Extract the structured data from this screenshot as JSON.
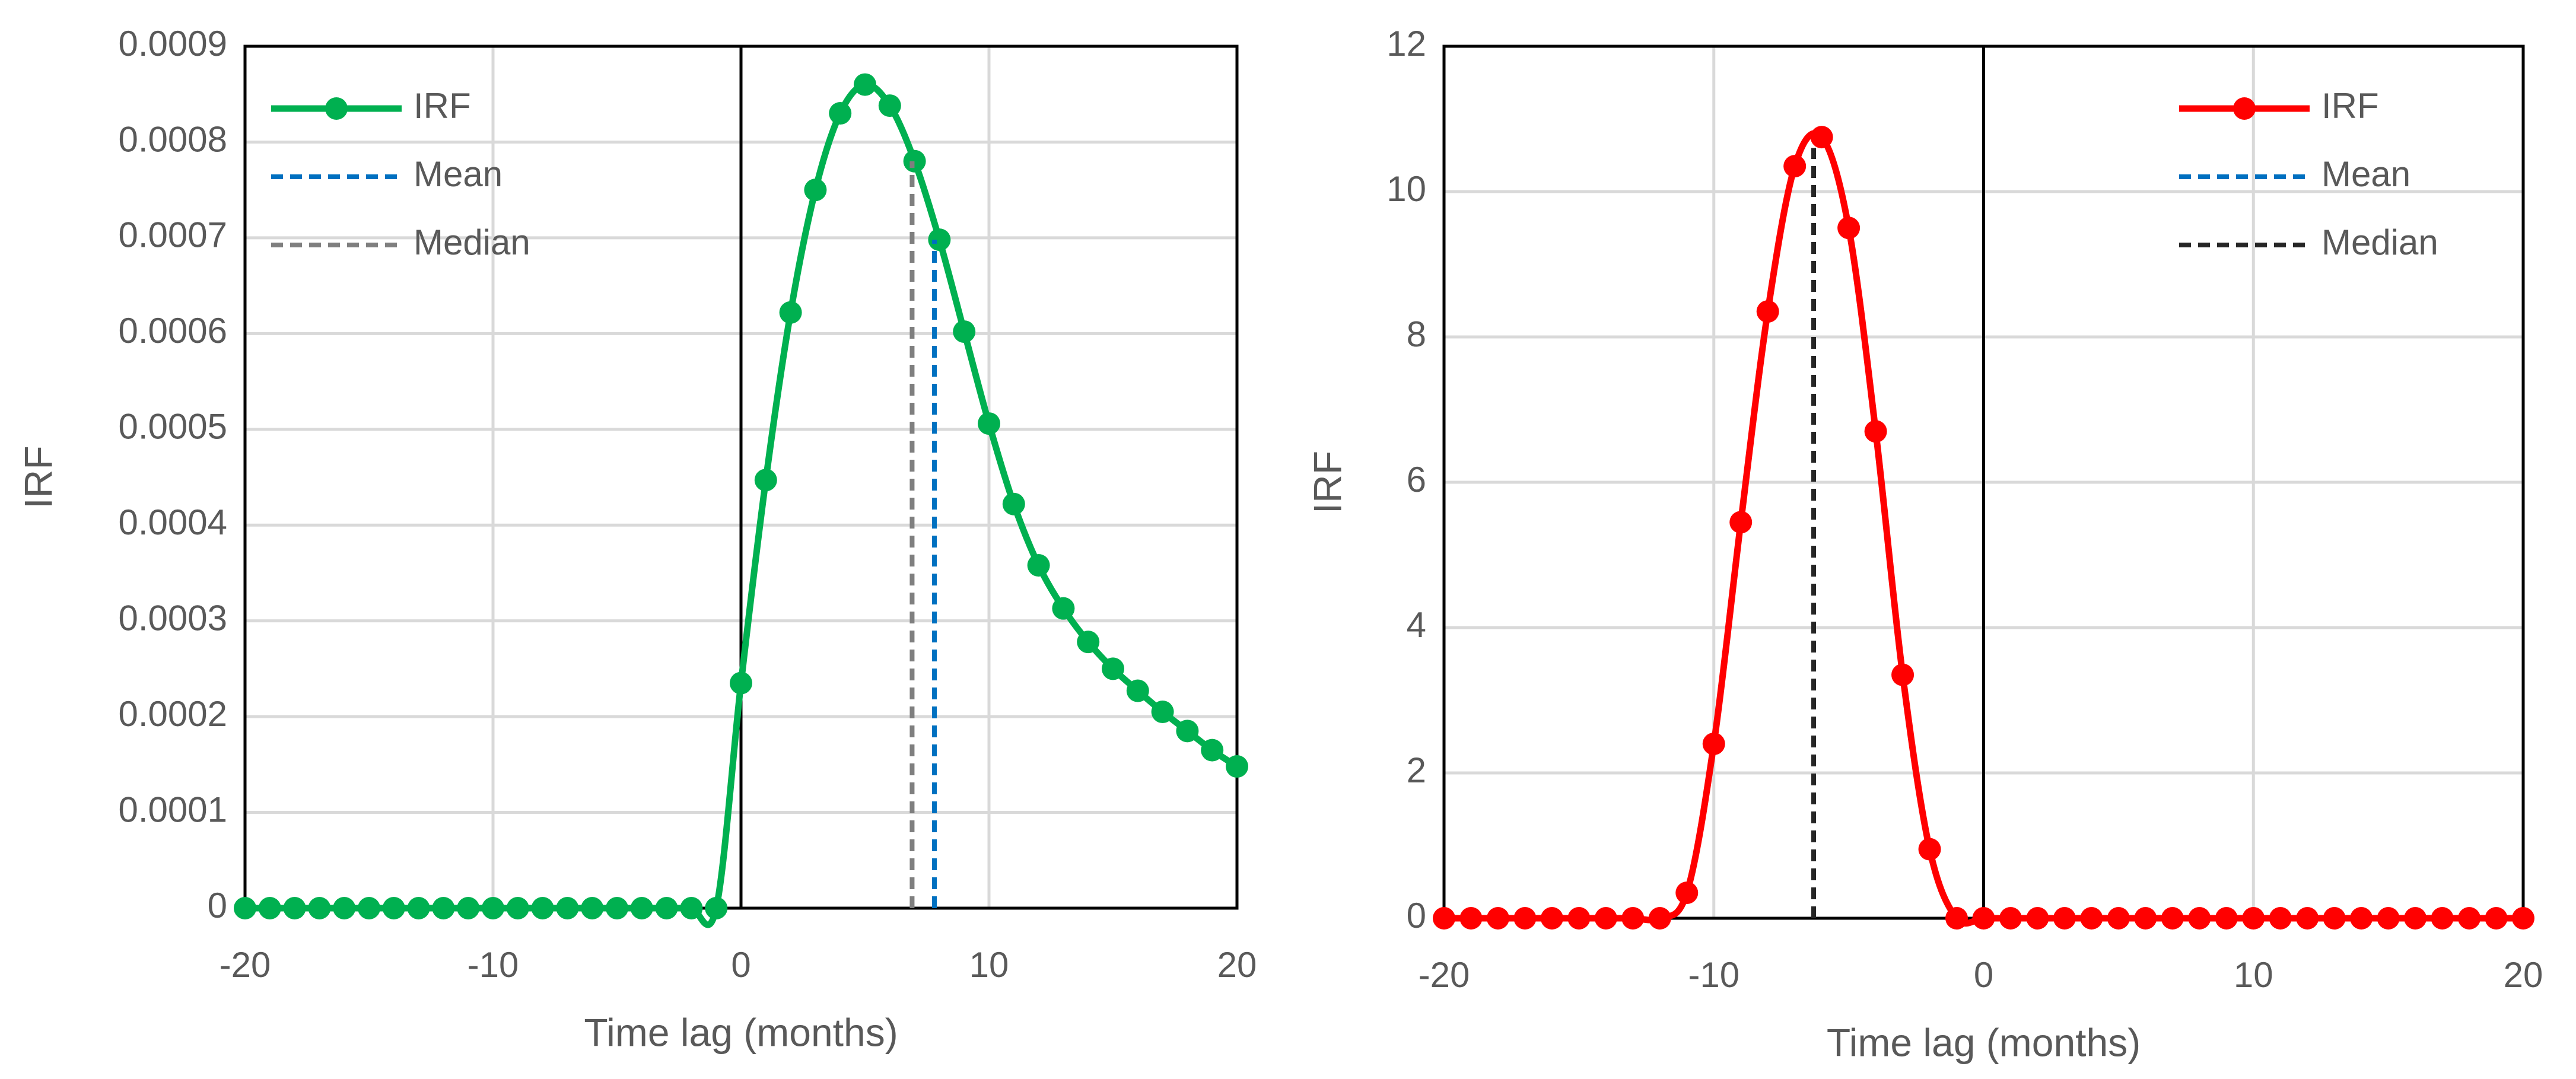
{
  "chart_data": [
    {
      "type": "line",
      "xlabel": "Time lag (months)",
      "ylabel": "IRF",
      "xlim": [
        -20,
        20
      ],
      "xticks": [
        -20,
        -10,
        0,
        10,
        20
      ],
      "ylim": [
        0,
        0.0009
      ],
      "yticks": [
        0,
        0.0001,
        0.0002,
        0.0003,
        0.0004,
        0.0005,
        0.0006,
        0.0007,
        0.0008,
        0.0009
      ],
      "grid": true,
      "legend": "upper left",
      "series": [
        {
          "name": "IRF",
          "color": "#00b050",
          "marker": true,
          "dash": false,
          "x": [
            -20,
            -19,
            -18,
            -17,
            -16,
            -15,
            -14,
            -13,
            -12,
            -11,
            -10,
            -9,
            -8,
            -7,
            -6,
            -5,
            -4,
            -3,
            -2,
            -1,
            0,
            1,
            2,
            3,
            4,
            5,
            6,
            7,
            8,
            9,
            10,
            11,
            12,
            13,
            14,
            15,
            16,
            17,
            18,
            19,
            20
          ],
          "values": [
            0,
            0,
            0,
            0,
            0,
            0,
            0,
            0,
            0,
            0,
            0,
            0,
            0,
            0,
            0,
            0,
            0,
            0,
            0,
            0,
            0.000235,
            0.000447,
            0.000622,
            0.00075,
            0.00083,
            0.00086,
            0.000838,
            0.00078,
            0.000698,
            0.000602,
            0.000506,
            0.000422,
            0.000358,
            0.000313,
            0.000278,
            0.00025,
            0.000227,
            0.000205,
            0.000185,
            0.000165,
            0.000148
          ]
        },
        {
          "name": "Mean",
          "color": "#0070c0",
          "marker": false,
          "dash": true,
          "x": [
            7.8,
            7.8
          ],
          "values": [
            0,
            0.000698
          ]
        },
        {
          "name": "Median",
          "color": "#7f7f7f",
          "marker": false,
          "dash": true,
          "x": [
            6.9,
            6.9
          ],
          "values": [
            0,
            0.00078
          ]
        }
      ]
    },
    {
      "type": "line",
      "xlabel": "Time lag (months)",
      "ylabel": "IRF",
      "xlim": [
        -20,
        20
      ],
      "xticks": [
        -20,
        -10,
        0,
        10,
        20
      ],
      "ylim": [
        0,
        12
      ],
      "yticks": [
        0,
        2,
        4,
        6,
        8,
        10,
        12
      ],
      "grid": true,
      "legend": "upper right",
      "series": [
        {
          "name": "IRF",
          "color": "#ff0000",
          "marker": true,
          "dash": false,
          "x": [
            -20,
            -19,
            -18,
            -17,
            -16,
            -15,
            -14,
            -13,
            -12,
            -11,
            -10,
            -9,
            -8,
            -7,
            -6,
            -5,
            -4,
            -3,
            -2,
            -1,
            0,
            1,
            2,
            3,
            4,
            5,
            6,
            7,
            8,
            9,
            10,
            11,
            12,
            13,
            14,
            15,
            16,
            17,
            18,
            19,
            20
          ],
          "values": [
            0,
            0,
            0,
            0,
            0,
            0,
            0,
            0,
            0,
            0.35,
            2.4,
            5.45,
            8.35,
            10.35,
            10.75,
            9.5,
            6.7,
            3.35,
            0.95,
            0,
            0,
            0,
            0,
            0,
            0,
            0,
            0,
            0,
            0,
            0,
            0,
            0,
            0,
            0,
            0,
            0,
            0,
            0,
            0,
            0,
            0
          ]
        },
        {
          "name": "Mean",
          "color": "#0070c0",
          "marker": false,
          "dash": true,
          "x": [
            -6.3,
            -6.3
          ],
          "values": [
            0,
            10.6
          ]
        },
        {
          "name": "Median",
          "color": "#262626",
          "marker": false,
          "dash": true,
          "x": [
            -6.3,
            -6.3
          ],
          "values": [
            0,
            10.6
          ]
        }
      ]
    }
  ]
}
